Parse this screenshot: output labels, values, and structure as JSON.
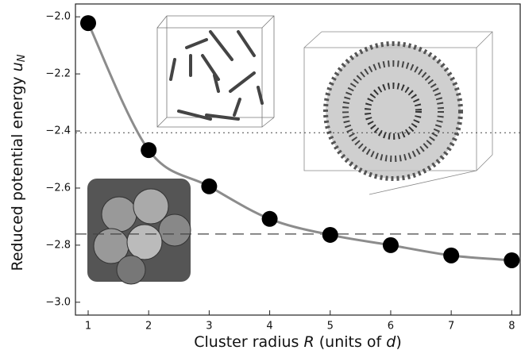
{
  "chart_data": {
    "type": "scatter",
    "xlabel": [
      "Cluster radius ",
      "R",
      " (units of ",
      "d",
      ")"
    ],
    "ylabel": [
      "Reduced potential energy ",
      "u",
      "N"
    ],
    "xlim": [
      0.79,
      8.14
    ],
    "ylim": [
      -3.045,
      -1.955
    ],
    "xticks": [
      1,
      2,
      3,
      4,
      5,
      6,
      7,
      8
    ],
    "yticks": [
      {
        "value": -2.0,
        "label": "−2.0"
      },
      {
        "value": -2.2,
        "label": "−2.2"
      },
      {
        "value": -2.4,
        "label": "−2.4"
      },
      {
        "value": -2.6,
        "label": "−2.6"
      },
      {
        "value": -2.8,
        "label": "−2.8"
      },
      {
        "value": -3.0,
        "label": "−3.0"
      }
    ],
    "x": [
      1,
      2,
      3,
      4,
      5,
      6,
      7,
      8
    ],
    "series": [
      {
        "color": "#000000",
        "line_color": "#8c8c8c",
        "values": [
          -2.022,
          -2.467,
          -2.594,
          -2.708,
          -2.764,
          -2.8,
          -2.836,
          -2.853
        ]
      }
    ],
    "reference_lines": [
      {
        "value": -2.406,
        "style": "dotted"
      },
      {
        "value": -2.761,
        "style": "dashed"
      }
    ]
  }
}
